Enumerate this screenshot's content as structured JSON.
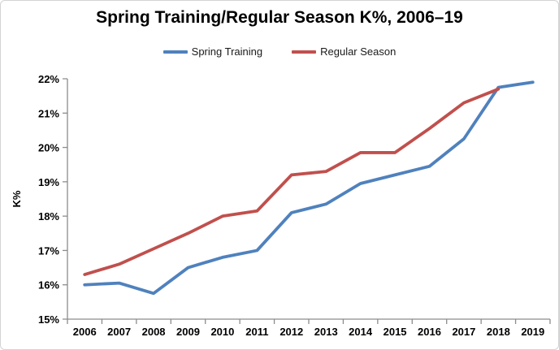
{
  "chart_data": {
    "type": "line",
    "title": "Spring Training/Regular Season K%, 2006–19",
    "ylabel": "K%",
    "xlabel": "",
    "grid": false,
    "legend_position": "top",
    "ylim": [
      15,
      22
    ],
    "ytick_step": 1,
    "ytick_suffix": "%",
    "categories": [
      "2006",
      "2007",
      "2008",
      "2009",
      "2010",
      "2011",
      "2012",
      "2013",
      "2014",
      "2015",
      "2016",
      "2017",
      "2018",
      "2019"
    ],
    "series": [
      {
        "name": "Spring Training",
        "color": "#4F81BD",
        "values": [
          16.0,
          16.05,
          15.75,
          16.5,
          16.8,
          17.0,
          18.1,
          18.35,
          18.95,
          19.2,
          19.45,
          20.25,
          21.75,
          21.9
        ]
      },
      {
        "name": "Regular Season",
        "color": "#C0504D",
        "values": [
          16.3,
          16.6,
          17.05,
          17.5,
          18.0,
          18.15,
          19.2,
          19.3,
          19.85,
          19.85,
          20.55,
          21.3,
          21.7,
          null
        ]
      }
    ],
    "axis_color": "#8c8c8c",
    "text_color": "#000000"
  }
}
